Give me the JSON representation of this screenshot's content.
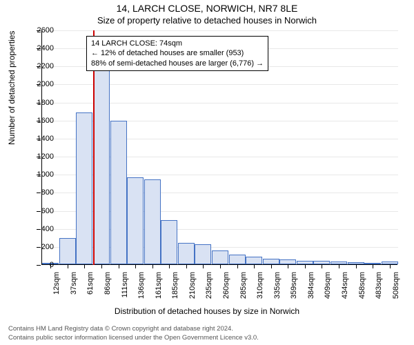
{
  "title": "14, LARCH CLOSE, NORWICH, NR7 8LE",
  "subtitle": "Size of property relative to detached houses in Norwich",
  "y_axis_title": "Number of detached properties",
  "x_axis_title": "Distribution of detached houses by size in Norwich",
  "chart": {
    "type": "histogram",
    "background_color": "#ffffff",
    "grid_color": "#e8e8e8",
    "bar_fill": "#d9e2f3",
    "bar_border": "#4472c4",
    "marker_color": "#cc0000",
    "ylim": [
      0,
      2600
    ],
    "ytick_step": 200,
    "x_categories": [
      "12sqm",
      "37sqm",
      "61sqm",
      "86sqm",
      "111sqm",
      "136sqm",
      "161sqm",
      "185sqm",
      "210sqm",
      "235sqm",
      "260sqm",
      "285sqm",
      "310sqm",
      "335sqm",
      "359sqm",
      "384sqm",
      "409sqm",
      "434sqm",
      "458sqm",
      "483sqm",
      "508sqm"
    ],
    "values": [
      10,
      290,
      1680,
      2150,
      1590,
      960,
      940,
      490,
      240,
      220,
      150,
      110,
      85,
      60,
      55,
      40,
      40,
      30,
      20,
      10,
      30
    ],
    "marker_position_index": 2.52
  },
  "annotation": {
    "line1": "14 LARCH CLOSE: 74sqm",
    "line2": "← 12% of detached houses are smaller (953)",
    "line3": "88% of semi-detached houses are larger (6,776) →"
  },
  "footer": {
    "line1": "Contains HM Land Registry data © Crown copyright and database right 2024.",
    "line2": "Contains public sector information licensed under the Open Government Licence v3.0."
  }
}
